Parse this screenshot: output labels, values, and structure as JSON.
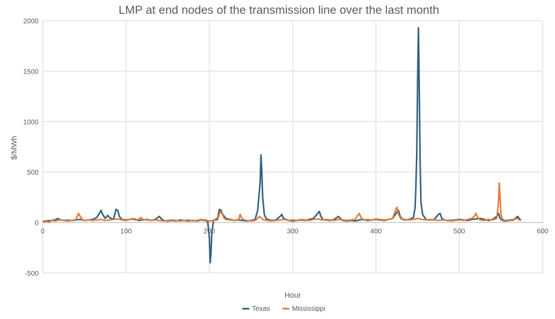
{
  "chart_data": {
    "type": "line",
    "title": "LMP at end nodes of the transmission line over the last month",
    "xlabel": "Hour",
    "ylabel": "$/MWh",
    "xlim": [
      0,
      600
    ],
    "ylim": [
      -500,
      2000
    ],
    "x_ticks": [
      0,
      100,
      200,
      300,
      400,
      500,
      600
    ],
    "y_ticks": [
      -500,
      0,
      500,
      1000,
      1500,
      2000
    ],
    "x_tick_labels": [
      "0",
      "100",
      "200",
      "300",
      "400",
      "500",
      "600"
    ],
    "y_tick_labels": [
      "-500",
      "0",
      "500",
      "1000",
      "1500",
      "2000"
    ],
    "grid": true,
    "legend_position": "bottom",
    "series": [
      {
        "name": "Texas",
        "color": "#2e5f7f",
        "points": [
          [
            0,
            10
          ],
          [
            5,
            15
          ],
          [
            10,
            20
          ],
          [
            15,
            25
          ],
          [
            18,
            40
          ],
          [
            20,
            30
          ],
          [
            25,
            20
          ],
          [
            30,
            22
          ],
          [
            35,
            18
          ],
          [
            40,
            25
          ],
          [
            45,
            30
          ],
          [
            50,
            20
          ],
          [
            55,
            25
          ],
          [
            60,
            30
          ],
          [
            65,
            50
          ],
          [
            68,
            90
          ],
          [
            70,
            120
          ],
          [
            72,
            80
          ],
          [
            75,
            40
          ],
          [
            78,
            70
          ],
          [
            80,
            50
          ],
          [
            85,
            30
          ],
          [
            88,
            130
          ],
          [
            90,
            120
          ],
          [
            92,
            60
          ],
          [
            95,
            30
          ],
          [
            100,
            25
          ],
          [
            105,
            30
          ],
          [
            110,
            35
          ],
          [
            115,
            20
          ],
          [
            120,
            25
          ],
          [
            125,
            30
          ],
          [
            130,
            20
          ],
          [
            135,
            30
          ],
          [
            140,
            60
          ],
          [
            142,
            40
          ],
          [
            145,
            20
          ],
          [
            150,
            15
          ],
          [
            155,
            20
          ],
          [
            160,
            15
          ],
          [
            165,
            25
          ],
          [
            170,
            20
          ],
          [
            175,
            15
          ],
          [
            180,
            20
          ],
          [
            185,
            15
          ],
          [
            190,
            25
          ],
          [
            195,
            20
          ],
          [
            198,
            10
          ],
          [
            200,
            -150
          ],
          [
            201,
            -400
          ],
          [
            202,
            -300
          ],
          [
            203,
            -100
          ],
          [
            205,
            20
          ],
          [
            210,
            40
          ],
          [
            212,
            130
          ],
          [
            214,
            120
          ],
          [
            216,
            80
          ],
          [
            220,
            40
          ],
          [
            225,
            30
          ],
          [
            230,
            20
          ],
          [
            235,
            25
          ],
          [
            240,
            20
          ],
          [
            245,
            15
          ],
          [
            250,
            20
          ],
          [
            255,
            30
          ],
          [
            258,
            120
          ],
          [
            260,
            300
          ],
          [
            261,
            400
          ],
          [
            262,
            670
          ],
          [
            263,
            500
          ],
          [
            264,
            250
          ],
          [
            266,
            80
          ],
          [
            268,
            40
          ],
          [
            270,
            30
          ],
          [
            275,
            20
          ],
          [
            280,
            25
          ],
          [
            285,
            60
          ],
          [
            287,
            80
          ],
          [
            289,
            40
          ],
          [
            292,
            30
          ],
          [
            295,
            20
          ],
          [
            300,
            15
          ],
          [
            305,
            20
          ],
          [
            310,
            25
          ],
          [
            315,
            20
          ],
          [
            320,
            30
          ],
          [
            325,
            40
          ],
          [
            330,
            90
          ],
          [
            332,
            110
          ],
          [
            334,
            60
          ],
          [
            336,
            30
          ],
          [
            340,
            25
          ],
          [
            345,
            20
          ],
          [
            350,
            30
          ],
          [
            355,
            60
          ],
          [
            357,
            40
          ],
          [
            360,
            20
          ],
          [
            365,
            15
          ],
          [
            370,
            20
          ],
          [
            375,
            15
          ],
          [
            380,
            25
          ],
          [
            385,
            30
          ],
          [
            390,
            20
          ],
          [
            395,
            25
          ],
          [
            400,
            30
          ],
          [
            405,
            25
          ],
          [
            410,
            20
          ],
          [
            415,
            30
          ],
          [
            420,
            40
          ],
          [
            425,
            100
          ],
          [
            427,
            120
          ],
          [
            429,
            60
          ],
          [
            432,
            30
          ],
          [
            435,
            25
          ],
          [
            440,
            30
          ],
          [
            445,
            50
          ],
          [
            447,
            150
          ],
          [
            448,
            380
          ],
          [
            449,
            700
          ],
          [
            450,
            1430
          ],
          [
            451,
            1930
          ],
          [
            452,
            1300
          ],
          [
            453,
            600
          ],
          [
            454,
            200
          ],
          [
            456,
            80
          ],
          [
            460,
            30
          ],
          [
            465,
            25
          ],
          [
            470,
            30
          ],
          [
            475,
            80
          ],
          [
            477,
            90
          ],
          [
            479,
            40
          ],
          [
            482,
            25
          ],
          [
            485,
            20
          ],
          [
            490,
            20
          ],
          [
            495,
            25
          ],
          [
            500,
            30
          ],
          [
            505,
            25
          ],
          [
            510,
            20
          ],
          [
            515,
            30
          ],
          [
            520,
            35
          ],
          [
            525,
            40
          ],
          [
            530,
            30
          ],
          [
            535,
            20
          ],
          [
            540,
            30
          ],
          [
            545,
            60
          ],
          [
            547,
            90
          ],
          [
            549,
            40
          ],
          [
            552,
            20
          ],
          [
            555,
            15
          ],
          [
            560,
            20
          ],
          [
            565,
            25
          ],
          [
            570,
            60
          ],
          [
            572,
            40
          ],
          [
            574,
            20
          ]
        ]
      },
      {
        "name": "Mississippi",
        "color": "#e07b39",
        "points": [
          [
            0,
            5
          ],
          [
            5,
            10
          ],
          [
            8,
            0
          ],
          [
            10,
            20
          ],
          [
            15,
            15
          ],
          [
            20,
            25
          ],
          [
            25,
            20
          ],
          [
            30,
            15
          ],
          [
            35,
            20
          ],
          [
            40,
            30
          ],
          [
            43,
            90
          ],
          [
            45,
            60
          ],
          [
            48,
            25
          ],
          [
            50,
            20
          ],
          [
            55,
            25
          ],
          [
            60,
            20
          ],
          [
            65,
            25
          ],
          [
            70,
            30
          ],
          [
            75,
            20
          ],
          [
            80,
            25
          ],
          [
            85,
            30
          ],
          [
            90,
            35
          ],
          [
            95,
            25
          ],
          [
            100,
            20
          ],
          [
            105,
            30
          ],
          [
            108,
            40
          ],
          [
            110,
            25
          ],
          [
            115,
            30
          ],
          [
            118,
            50
          ],
          [
            120,
            30
          ],
          [
            125,
            25
          ],
          [
            130,
            20
          ],
          [
            135,
            25
          ],
          [
            140,
            20
          ],
          [
            145,
            15
          ],
          [
            150,
            20
          ],
          [
            155,
            25
          ],
          [
            160,
            20
          ],
          [
            165,
            15
          ],
          [
            170,
            20
          ],
          [
            175,
            25
          ],
          [
            180,
            15
          ],
          [
            185,
            20
          ],
          [
            190,
            30
          ],
          [
            195,
            25
          ],
          [
            200,
            15
          ],
          [
            205,
            20
          ],
          [
            210,
            25
          ],
          [
            213,
            110
          ],
          [
            215,
            90
          ],
          [
            218,
            40
          ],
          [
            220,
            30
          ],
          [
            225,
            25
          ],
          [
            230,
            20
          ],
          [
            235,
            30
          ],
          [
            237,
            80
          ],
          [
            239,
            40
          ],
          [
            242,
            25
          ],
          [
            245,
            20
          ],
          [
            250,
            15
          ],
          [
            255,
            20
          ],
          [
            258,
            40
          ],
          [
            260,
            60
          ],
          [
            263,
            40
          ],
          [
            265,
            25
          ],
          [
            270,
            20
          ],
          [
            275,
            15
          ],
          [
            280,
            20
          ],
          [
            285,
            25
          ],
          [
            290,
            30
          ],
          [
            295,
            20
          ],
          [
            300,
            25
          ],
          [
            305,
            20
          ],
          [
            310,
            30
          ],
          [
            315,
            25
          ],
          [
            320,
            20
          ],
          [
            325,
            30
          ],
          [
            330,
            35
          ],
          [
            335,
            25
          ],
          [
            340,
            30
          ],
          [
            345,
            25
          ],
          [
            350,
            20
          ],
          [
            355,
            30
          ],
          [
            360,
            25
          ],
          [
            365,
            20
          ],
          [
            370,
            25
          ],
          [
            375,
            30
          ],
          [
            378,
            70
          ],
          [
            380,
            90
          ],
          [
            382,
            50
          ],
          [
            385,
            25
          ],
          [
            390,
            30
          ],
          [
            395,
            25
          ],
          [
            400,
            35
          ],
          [
            405,
            30
          ],
          [
            410,
            25
          ],
          [
            415,
            30
          ],
          [
            420,
            40
          ],
          [
            423,
            110
          ],
          [
            425,
            150
          ],
          [
            427,
            80
          ],
          [
            430,
            35
          ],
          [
            435,
            30
          ],
          [
            440,
            25
          ],
          [
            445,
            30
          ],
          [
            450,
            40
          ],
          [
            455,
            30
          ],
          [
            460,
            25
          ],
          [
            465,
            30
          ],
          [
            470,
            25
          ],
          [
            475,
            20
          ],
          [
            480,
            25
          ],
          [
            485,
            20
          ],
          [
            490,
            15
          ],
          [
            495,
            20
          ],
          [
            500,
            25
          ],
          [
            505,
            20
          ],
          [
            510,
            30
          ],
          [
            515,
            40
          ],
          [
            518,
            60
          ],
          [
            520,
            90
          ],
          [
            522,
            50
          ],
          [
            525,
            25
          ],
          [
            530,
            20
          ],
          [
            535,
            30
          ],
          [
            540,
            25
          ],
          [
            545,
            40
          ],
          [
            547,
            200
          ],
          [
            548,
            390
          ],
          [
            549,
            250
          ],
          [
            550,
            80
          ],
          [
            552,
            30
          ],
          [
            555,
            20
          ],
          [
            560,
            25
          ],
          [
            565,
            30
          ],
          [
            570,
            40
          ],
          [
            572,
            25
          ],
          [
            574,
            20
          ]
        ]
      }
    ]
  }
}
